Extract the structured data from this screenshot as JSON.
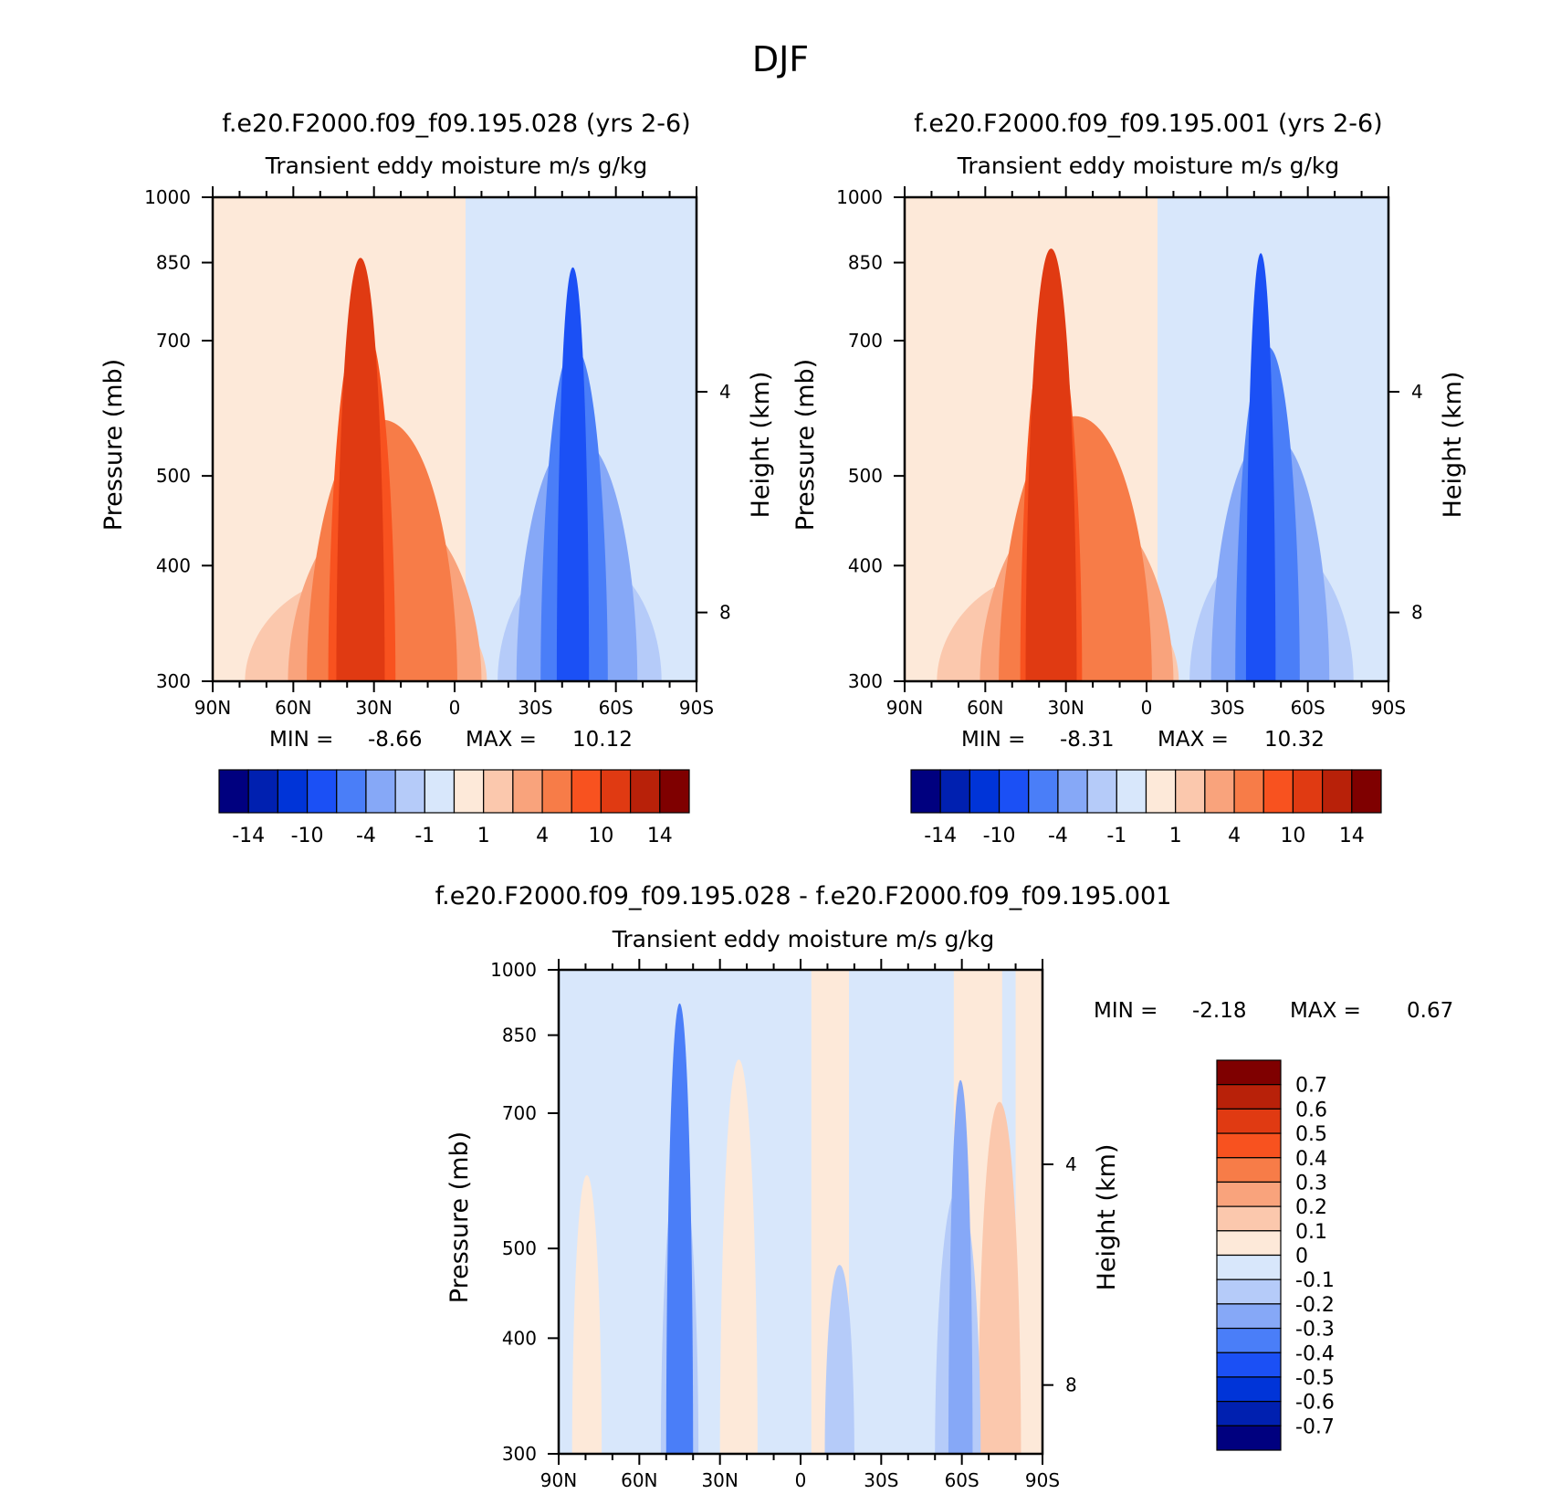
{
  "figure": {
    "title": "DJF",
    "pressure_ticks": [
      300,
      400,
      500,
      700,
      850,
      1000
    ],
    "height_ticks": [
      8,
      4
    ],
    "lat_ticks": [
      "90N",
      "60N",
      "30N",
      "0",
      "30S",
      "60S",
      "90S"
    ],
    "ylabel_left": "Pressure (mb)",
    "ylabel_right": "Height (km)",
    "abs_colors": [
      "#00007f",
      "#0020b0",
      "#0034d8",
      "#1b50f5",
      "#4a7ef8",
      "#86a8f7",
      "#b5cbf9",
      "#d8e7fb",
      "#fde9d9",
      "#fbc8ad",
      "#f9a37c",
      "#f77c48",
      "#f8521f",
      "#e03a12",
      "#b82109",
      "#7f0000"
    ],
    "diff_colors": [
      "#00007f",
      "#0020b0",
      "#0034d8",
      "#1b50f5",
      "#4a7ef8",
      "#86a8f7",
      "#b5cbf9",
      "#d8e7fb",
      "#fde9d9",
      "#fbc8ad",
      "#f9a37c",
      "#f77c48",
      "#f8521f",
      "#e03a12",
      "#b82109",
      "#7f0000"
    ]
  },
  "panels": {
    "p1": {
      "title": "f.e20.F2000.f09_f09.195.028 (yrs 2-6)",
      "subtitle": "Transient eddy moisture m/s g/kg",
      "min_label": "MIN =",
      "min_value": "-8.66",
      "max_label": "MAX =",
      "max_value": "10.12"
    },
    "p2": {
      "title": "f.e20.F2000.f09_f09.195.001 (yrs 2-6)",
      "subtitle": "Transient eddy moisture m/s g/kg",
      "min_label": "MIN =",
      "min_value": "-8.31",
      "max_label": "MAX =",
      "max_value": "10.32"
    },
    "p3": {
      "title": "f.e20.F2000.f09_f09.195.028 - f.e20.F2000.f09_f09.195.001",
      "subtitle": "Transient eddy moisture m/s g/kg",
      "min_label": "MIN =",
      "min_value": "-2.18",
      "max_label": "MAX =",
      "max_value": "0.67"
    }
  },
  "colorbar_abs": {
    "labels": [
      "-14",
      "-10",
      "-4",
      "-1",
      "1",
      "4",
      "10",
      "14"
    ]
  },
  "colorbar_diff": {
    "labels": [
      "0.7",
      "0.6",
      "0.5",
      "0.4",
      "0.3",
      "0.2",
      "0.1",
      "0",
      "-0.1",
      "-0.2",
      "-0.3",
      "-0.4",
      "-0.5",
      "-0.6",
      "-0.7"
    ]
  },
  "chart_data": [
    {
      "type": "heatmap",
      "title": "f.e20.F2000.f09_f09.195.028 (yrs 2-6)",
      "subtitle": "Transient eddy moisture m/s g/kg",
      "xlabel": "",
      "ylabel": "Pressure (mb)",
      "y2label": "Height (km)",
      "x_ticks": [
        "90N",
        "60N",
        "30N",
        "0",
        "30S",
        "60S",
        "90S"
      ],
      "y_ticks": [
        300,
        400,
        500,
        700,
        850,
        1000
      ],
      "y2_ticks": [
        8,
        4
      ],
      "xlim": [
        90,
        -90
      ],
      "ylim": [
        1000,
        300
      ],
      "min": -8.66,
      "max": 10.12,
      "features": [
        {
          "sign": "positive",
          "level": 9,
          "lat_range": [
            78,
            -12
          ],
          "top_mb": 390
        },
        {
          "sign": "positive",
          "level": 10,
          "lat_range": [
            62,
            -10
          ],
          "top_mb": 465
        },
        {
          "sign": "positive",
          "level": 11,
          "lat_range": [
            55,
            -1
          ],
          "top_mb": 575
        },
        {
          "sign": "positive",
          "level": 12,
          "lat_range": [
            47,
            22
          ],
          "top_mb": 740
        },
        {
          "sign": "positive",
          "level": 13,
          "lat_range": [
            44,
            26
          ],
          "top_mb": 860
        },
        {
          "sign": "negative",
          "level": 6,
          "lat_range": [
            -16,
            -77
          ],
          "top_mb": 410
        },
        {
          "sign": "negative",
          "level": 5,
          "lat_range": [
            -23,
            -68
          ],
          "top_mb": 550
        },
        {
          "sign": "negative",
          "level": 4,
          "lat_range": [
            -32,
            -57
          ],
          "top_mb": 690
        },
        {
          "sign": "negative",
          "level": 3,
          "lat_range": [
            -38,
            -50
          ],
          "top_mb": 840
        }
      ]
    },
    {
      "type": "heatmap",
      "title": "f.e20.F2000.f09_f09.195.001 (yrs 2-6)",
      "subtitle": "Transient eddy moisture m/s g/kg",
      "xlabel": "",
      "ylabel": "Pressure (mb)",
      "y2label": "Height (km)",
      "x_ticks": [
        "90N",
        "60N",
        "30N",
        "0",
        "30S",
        "60S",
        "90S"
      ],
      "y_ticks": [
        300,
        400,
        500,
        700,
        850,
        1000
      ],
      "y2_ticks": [
        8,
        4
      ],
      "xlim": [
        90,
        -90
      ],
      "ylim": [
        1000,
        300
      ],
      "min": -8.31,
      "max": 10.32,
      "features": [
        {
          "sign": "positive",
          "level": 9,
          "lat_range": [
            78,
            -12
          ],
          "top_mb": 395
        },
        {
          "sign": "positive",
          "level": 10,
          "lat_range": [
            62,
            -10
          ],
          "top_mb": 470
        },
        {
          "sign": "positive",
          "level": 11,
          "lat_range": [
            55,
            -2
          ],
          "top_mb": 580
        },
        {
          "sign": "positive",
          "level": 12,
          "lat_range": [
            47,
            24
          ],
          "top_mb": 750
        },
        {
          "sign": "positive",
          "level": 13,
          "lat_range": [
            45,
            26
          ],
          "top_mb": 880
        },
        {
          "sign": "negative",
          "level": 6,
          "lat_range": [
            -16,
            -77
          ],
          "top_mb": 425
        },
        {
          "sign": "negative",
          "level": 5,
          "lat_range": [
            -24,
            -68
          ],
          "top_mb": 555
        },
        {
          "sign": "negative",
          "level": 4,
          "lat_range": [
            -33,
            -57
          ],
          "top_mb": 690
        },
        {
          "sign": "negative",
          "level": 3,
          "lat_range": [
            -37,
            -48
          ],
          "top_mb": 870
        }
      ]
    },
    {
      "type": "heatmap",
      "title": "f.e20.F2000.f09_f09.195.028 - f.e20.F2000.f09_f09.195.001",
      "subtitle": "Transient eddy moisture m/s g/kg",
      "xlabel": "",
      "ylabel": "Pressure (mb)",
      "y2label": "Height (km)",
      "x_ticks": [
        "90N",
        "60N",
        "30N",
        "0",
        "30S",
        "60S",
        "90S"
      ],
      "y_ticks": [
        300,
        400,
        500,
        700,
        850,
        1000
      ],
      "y2_ticks": [
        8,
        4
      ],
      "xlim": [
        90,
        -90
      ],
      "ylim": [
        1000,
        300
      ],
      "min": -2.18,
      "max": 0.67,
      "features": [
        {
          "sign": "positive",
          "level": 8,
          "lat_range": [
            -4,
            -18
          ],
          "top_mb": 300
        },
        {
          "sign": "positive",
          "level": 8,
          "lat_range": [
            -57,
            -75
          ],
          "top_mb": 300
        },
        {
          "sign": "positive",
          "level": 8,
          "lat_range": [
            -80,
            -90
          ],
          "top_mb": 300
        },
        {
          "sign": "positive",
          "level": 8,
          "lat_range": [
            85,
            74
          ],
          "top_mb": 600
        },
        {
          "sign": "positive",
          "level": 8,
          "lat_range": [
            30,
            16
          ],
          "top_mb": 800
        },
        {
          "sign": "positive",
          "level": 9,
          "lat_range": [
            -66,
            -82
          ],
          "top_mb": 720
        },
        {
          "sign": "negative",
          "level": 6,
          "lat_range": [
            -9,
            -20
          ],
          "top_mb": 480
        },
        {
          "sign": "negative",
          "level": 6,
          "lat_range": [
            -50,
            -67
          ],
          "top_mb": 580
        },
        {
          "sign": "negative",
          "level": 6,
          "lat_range": [
            52,
            38
          ],
          "top_mb": 620
        },
        {
          "sign": "negative",
          "level": 5,
          "lat_range": [
            -55,
            -64
          ],
          "top_mb": 760
        },
        {
          "sign": "negative",
          "level": 4,
          "lat_range": [
            50,
            40
          ],
          "top_mb": 920
        }
      ]
    }
  ]
}
